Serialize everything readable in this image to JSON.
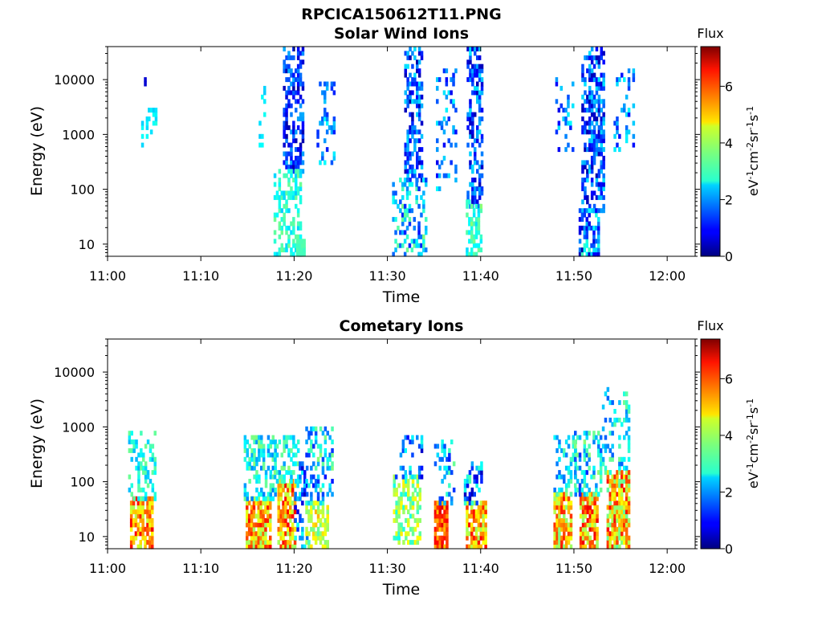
{
  "figure": {
    "title": "RPCICA150612T11.PNG"
  },
  "chart_data": [
    {
      "type": "heatmap",
      "title": "Solar Wind Ions",
      "xlabel": "Time",
      "ylabel": "Energy (eV)",
      "x_ticks": [
        "11:00",
        "11:10",
        "11:20",
        "11:30",
        "11:40",
        "11:50",
        "12:00"
      ],
      "xlim": [
        "11:00",
        "12:03"
      ],
      "y_scale": "log",
      "y_ticks": [
        "10",
        "100",
        "1000",
        "10000"
      ],
      "ylim": [
        6,
        40000
      ],
      "colorbar": {
        "title": "Flux",
        "ticks": [
          "0",
          "2",
          "4",
          "6"
        ],
        "range": [
          0,
          7.4
        ],
        "unit": "eV-1cm-2sr-1s-1",
        "colormap": "jet"
      },
      "bursts": [
        {
          "t0": 3.6,
          "t1": 4.3,
          "e_lo": 600,
          "e_hi": 2000,
          "density": 0.25,
          "flux": [
            2.3,
            3.0
          ]
        },
        {
          "t0": 4.3,
          "t1": 5.2,
          "e_lo": 1000,
          "e_hi": 3000,
          "density": 0.35,
          "flux": [
            2.4,
            3.0
          ]
        },
        {
          "t0": 3.9,
          "t1": 4.0,
          "e_lo": 9000,
          "e_hi": 10500,
          "density": 1.0,
          "flux": [
            0.6,
            0.6
          ]
        },
        {
          "t0": 16.2,
          "t1": 16.8,
          "e_lo": 700,
          "e_hi": 7000,
          "density": 0.2,
          "flux": [
            2.4,
            3.0
          ]
        },
        {
          "t0": 18.8,
          "t1": 21.0,
          "e_lo": 200,
          "e_hi": 35000,
          "density": 0.55,
          "flux": [
            0.3,
            2.2
          ]
        },
        {
          "t0": 17.8,
          "t1": 20.6,
          "e_lo": 7,
          "e_hi": 200,
          "density": 0.5,
          "flux": [
            2.4,
            3.6
          ]
        },
        {
          "t0": 20.2,
          "t1": 21.0,
          "e_lo": 6,
          "e_hi": 12,
          "density": 0.9,
          "flux": [
            3.2,
            3.4
          ]
        },
        {
          "t0": 22.4,
          "t1": 24.2,
          "e_lo": 300,
          "e_hi": 11000,
          "density": 0.22,
          "flux": [
            1.0,
            2.8
          ]
        },
        {
          "t0": 31.8,
          "t1": 33.8,
          "e_lo": 150,
          "e_hi": 35000,
          "density": 0.5,
          "flux": [
            0.3,
            2.6
          ]
        },
        {
          "t0": 30.5,
          "t1": 34.2,
          "e_lo": 6,
          "e_hi": 150,
          "density": 0.4,
          "flux": [
            1.0,
            3.8
          ]
        },
        {
          "t0": 35.2,
          "t1": 37.4,
          "e_lo": 100,
          "e_hi": 15000,
          "density": 0.22,
          "flux": [
            0.8,
            2.8
          ]
        },
        {
          "t0": 38.5,
          "t1": 40.2,
          "e_lo": 50,
          "e_hi": 35000,
          "density": 0.55,
          "flux": [
            0.3,
            2.6
          ]
        },
        {
          "t0": 38.4,
          "t1": 40.0,
          "e_lo": 6,
          "e_hi": 60,
          "density": 0.6,
          "flux": [
            2.5,
            3.8
          ]
        },
        {
          "t0": 48.0,
          "t1": 50.0,
          "e_lo": 500,
          "e_hi": 10000,
          "density": 0.18,
          "flux": [
            0.8,
            2.8
          ]
        },
        {
          "t0": 50.8,
          "t1": 53.2,
          "e_lo": 40,
          "e_hi": 35000,
          "density": 0.55,
          "flux": [
            0.3,
            2.6
          ]
        },
        {
          "t0": 50.5,
          "t1": 52.6,
          "e_lo": 6,
          "e_hi": 40,
          "density": 0.55,
          "flux": [
            0.2,
            3.3
          ]
        },
        {
          "t0": 54.0,
          "t1": 56.3,
          "e_lo": 500,
          "e_hi": 15000,
          "density": 0.22,
          "flux": [
            1.0,
            2.8
          ]
        }
      ]
    },
    {
      "type": "heatmap",
      "title": "Cometary Ions",
      "xlabel": "Time",
      "ylabel": "Energy (eV)",
      "x_ticks": [
        "11:00",
        "11:10",
        "11:20",
        "11:30",
        "11:40",
        "11:50",
        "12:00"
      ],
      "xlim": [
        "11:00",
        "12:03"
      ],
      "y_scale": "log",
      "y_ticks": [
        "10",
        "100",
        "1000",
        "10000"
      ],
      "ylim": [
        6,
        40000
      ],
      "colorbar": {
        "title": "Flux",
        "ticks": [
          "0",
          "2",
          "4",
          "6"
        ],
        "range": [
          0,
          7.4
        ],
        "unit": "eV-1cm-2sr-1s-1",
        "colormap": "jet"
      },
      "bursts": [
        {
          "t0": 2.4,
          "t1": 4.8,
          "e_lo": 6,
          "e_hi": 50,
          "density": 0.8,
          "flux": [
            4.0,
            6.6
          ]
        },
        {
          "t0": 2.2,
          "t1": 5.0,
          "e_lo": 50,
          "e_hi": 800,
          "density": 0.35,
          "flux": [
            2.2,
            3.6
          ]
        },
        {
          "t0": 14.8,
          "t1": 17.5,
          "e_lo": 6,
          "e_hi": 50,
          "density": 0.8,
          "flux": [
            3.8,
            6.5
          ]
        },
        {
          "t0": 14.6,
          "t1": 18.0,
          "e_lo": 50,
          "e_hi": 700,
          "density": 0.45,
          "flux": [
            1.8,
            3.8
          ]
        },
        {
          "t0": 18.2,
          "t1": 20.0,
          "e_lo": 6,
          "e_hi": 100,
          "density": 0.8,
          "flux": [
            3.8,
            6.6
          ]
        },
        {
          "t0": 17.8,
          "t1": 20.5,
          "e_lo": 100,
          "e_hi": 700,
          "density": 0.4,
          "flux": [
            2.0,
            3.8
          ]
        },
        {
          "t0": 20.0,
          "t1": 21.5,
          "e_lo": 6,
          "e_hi": 200,
          "density": 0.35,
          "flux": [
            0.4,
            3.0
          ]
        },
        {
          "t0": 21.2,
          "t1": 23.5,
          "e_lo": 6,
          "e_hi": 40,
          "density": 0.6,
          "flux": [
            3.2,
            5.2
          ]
        },
        {
          "t0": 21.2,
          "t1": 24.0,
          "e_lo": 40,
          "e_hi": 900,
          "density": 0.4,
          "flux": [
            1.0,
            3.8
          ]
        },
        {
          "t0": 30.6,
          "t1": 33.5,
          "e_lo": 8,
          "e_hi": 120,
          "density": 0.55,
          "flux": [
            2.8,
            4.8
          ]
        },
        {
          "t0": 30.8,
          "t1": 33.8,
          "e_lo": 120,
          "e_hi": 700,
          "density": 0.25,
          "flux": [
            0.5,
            3.0
          ]
        },
        {
          "t0": 35.0,
          "t1": 36.4,
          "e_lo": 6,
          "e_hi": 40,
          "density": 0.9,
          "flux": [
            5.0,
            6.8
          ]
        },
        {
          "t0": 35.0,
          "t1": 37.2,
          "e_lo": 40,
          "e_hi": 500,
          "density": 0.3,
          "flux": [
            1.0,
            3.6
          ]
        },
        {
          "t0": 38.4,
          "t1": 40.5,
          "e_lo": 6,
          "e_hi": 40,
          "density": 0.85,
          "flux": [
            3.8,
            6.5
          ]
        },
        {
          "t0": 38.2,
          "t1": 40.0,
          "e_lo": 40,
          "e_hi": 200,
          "density": 0.35,
          "flux": [
            0.3,
            3.4
          ]
        },
        {
          "t0": 47.8,
          "t1": 49.8,
          "e_lo": 6,
          "e_hi": 60,
          "density": 0.85,
          "flux": [
            3.6,
            6.4
          ]
        },
        {
          "t0": 47.8,
          "t1": 50.2,
          "e_lo": 60,
          "e_hi": 700,
          "density": 0.35,
          "flux": [
            1.6,
            3.6
          ]
        },
        {
          "t0": 50.6,
          "t1": 52.5,
          "e_lo": 6,
          "e_hi": 60,
          "density": 0.85,
          "flux": [
            3.8,
            6.6
          ]
        },
        {
          "t0": 50.0,
          "t1": 52.8,
          "e_lo": 60,
          "e_hi": 800,
          "density": 0.4,
          "flux": [
            1.0,
            3.8
          ]
        },
        {
          "t0": 53.5,
          "t1": 55.8,
          "e_lo": 6,
          "e_hi": 150,
          "density": 0.85,
          "flux": [
            3.4,
            6.5
          ]
        },
        {
          "t0": 53.0,
          "t1": 56.0,
          "e_lo": 150,
          "e_hi": 5000,
          "density": 0.3,
          "flux": [
            1.6,
            3.6
          ]
        }
      ]
    }
  ]
}
